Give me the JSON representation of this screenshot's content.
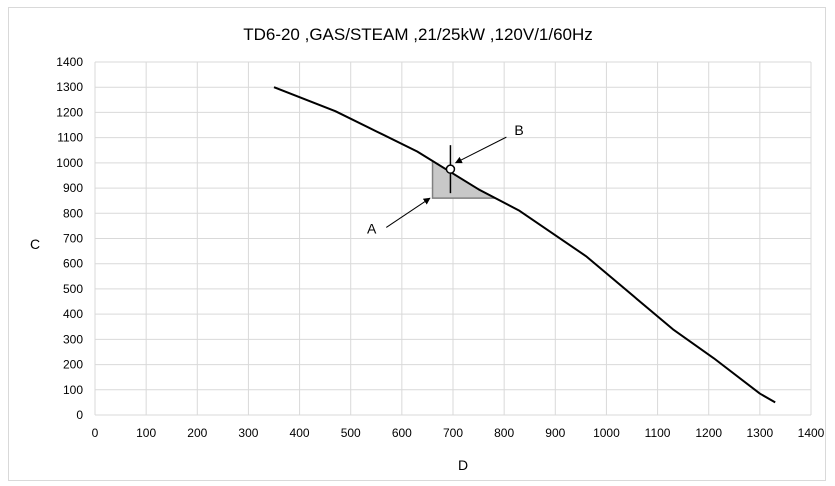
{
  "chart_data": {
    "type": "line",
    "title": "TD6-20 ,GAS/STEAM ,21/25kW ,120V/1/60Hz",
    "xlabel": "D",
    "ylabel": "C",
    "xlim": [
      0,
      1400
    ],
    "ylim": [
      0,
      1400
    ],
    "xticks": [
      0,
      100,
      200,
      300,
      400,
      500,
      600,
      700,
      800,
      900,
      1000,
      1100,
      1200,
      1300,
      1400
    ],
    "yticks": [
      0,
      100,
      200,
      300,
      400,
      500,
      600,
      700,
      800,
      900,
      1000,
      1100,
      1200,
      1300,
      1400
    ],
    "grid": true,
    "legend": "none",
    "series": [
      {
        "x": [
          350,
          470,
          550,
          630,
          690,
          750,
          830,
          960,
          1130,
          1210,
          1300,
          1330
        ],
        "y": [
          1300,
          1205,
          1125,
          1045,
          970,
          895,
          810,
          630,
          340,
          225,
          85,
          50
        ]
      }
    ],
    "operating_point": {
      "x": 695,
      "y": 975
    },
    "tolerance_region": {
      "x_min": 660,
      "x_max": 780,
      "y_min": 860
    },
    "annotations": [
      {
        "label": "A",
        "text_x": 550,
        "text_y": 720,
        "arrow_x": 655,
        "arrow_y": 860
      },
      {
        "label": "B",
        "text_x": 820,
        "text_y": 1110,
        "arrow_x": 705,
        "arrow_y": 1000
      }
    ],
    "colors": {
      "line": "#000000",
      "grid": "#d9d9d9",
      "region_fill": "#c8c8c8",
      "region_edge": "#808080"
    }
  }
}
